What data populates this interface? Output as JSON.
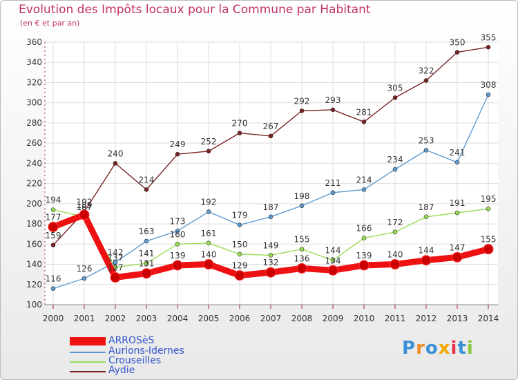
{
  "header": {
    "title": "Evolution des Impôts locaux pour la Commune par Habitant",
    "subtitle": "(en € et par an)"
  },
  "logo": {
    "text": "Proxiti",
    "colors": [
      "#3a8fd6",
      "#f08a24",
      "#3a8fd6",
      "#f2a900",
      "#e8304a",
      "#3a8fd6",
      "#8cc63f"
    ]
  },
  "chart_data": {
    "type": "line",
    "x": [
      2000,
      2001,
      2002,
      2003,
      2004,
      2005,
      2006,
      2007,
      2008,
      2009,
      2010,
      2011,
      2012,
      2013,
      2014
    ],
    "ylim": [
      100,
      360
    ],
    "yticks": [
      100,
      120,
      140,
      160,
      180,
      200,
      220,
      240,
      260,
      280,
      300,
      320,
      340,
      360
    ],
    "grid": true,
    "legend_position": "bottom-left",
    "series": [
      {
        "name": "ARROSèS",
        "color": "#ee1111",
        "values": [
          177,
          189,
          127,
          131,
          139,
          140,
          129,
          132,
          136,
          134,
          139,
          140,
          144,
          147,
          155
        ]
      },
      {
        "name": "Aurions-Idernes",
        "color": "#5c9bd1",
        "values": [
          116,
          126,
          142,
          163,
          173,
          192,
          179,
          187,
          198,
          211,
          214,
          234,
          253,
          241,
          308
        ]
      },
      {
        "name": "Crouseilles",
        "color": "#99dd55",
        "values": [
          194,
          187,
          137,
          141,
          160,
          161,
          150,
          149,
          155,
          144,
          166,
          172,
          187,
          191,
          195
        ]
      },
      {
        "name": "Aydie",
        "color": "#7a2222",
        "values": [
          159,
          192,
          240,
          214,
          249,
          252,
          270,
          267,
          292,
          293,
          281,
          305,
          322,
          350,
          355
        ]
      }
    ]
  }
}
